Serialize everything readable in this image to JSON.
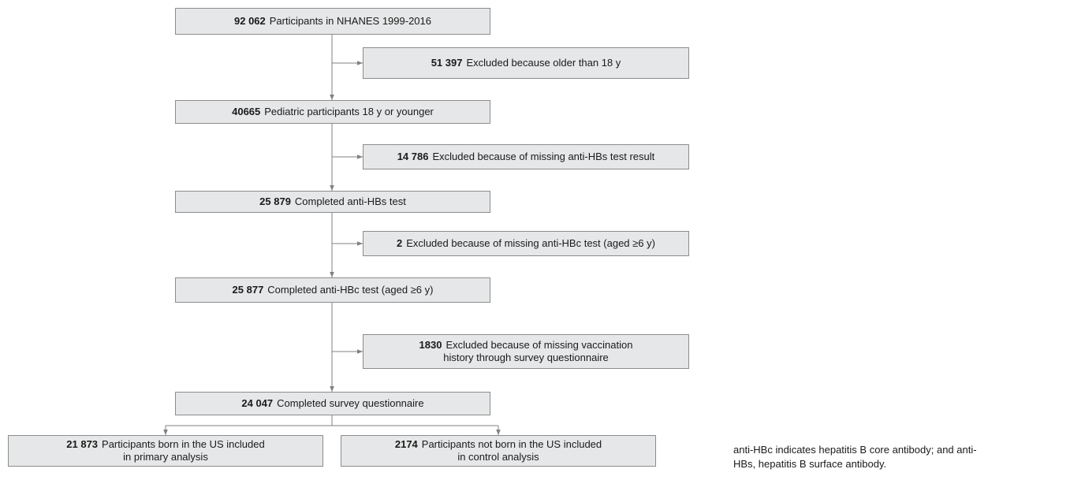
{
  "nodes": [
    {
      "number": "92 062",
      "lines": [
        "Participants in NHANES 1999-2016"
      ]
    },
    {
      "number": "51 397",
      "lines": [
        "Excluded because older than 18 y"
      ]
    },
    {
      "number": "40665",
      "lines": [
        "Pediatric participants 18 y or younger"
      ]
    },
    {
      "number": "14 786",
      "lines": [
        "Excluded because of missing anti-HBs test result"
      ]
    },
    {
      "number": "25 879",
      "lines": [
        "Completed anti-HBs test"
      ]
    },
    {
      "number": "2",
      "lines": [
        "Excluded because of missing anti-HBc test (aged ≥6 y)"
      ]
    },
    {
      "number": "25 877",
      "lines": [
        "Completed anti-HBc test (aged ≥6 y)"
      ]
    },
    {
      "number": "1830",
      "lines": [
        "Excluded because of missing vaccination",
        "history through survey questionnaire"
      ]
    },
    {
      "number": "24 047",
      "lines": [
        "Completed survey questionnaire"
      ]
    },
    {
      "number": "21 873",
      "lines": [
        "Participants born in the US included",
        "in primary analysis"
      ]
    },
    {
      "number": "2174",
      "lines": [
        "Participants not born in the US included",
        "in control analysis"
      ]
    }
  ],
  "caption": {
    "lines": [
      "anti-HBc indicates hepatitis B core antibody; and anti-",
      "HBs, hepatitis B surface antibody."
    ]
  }
}
